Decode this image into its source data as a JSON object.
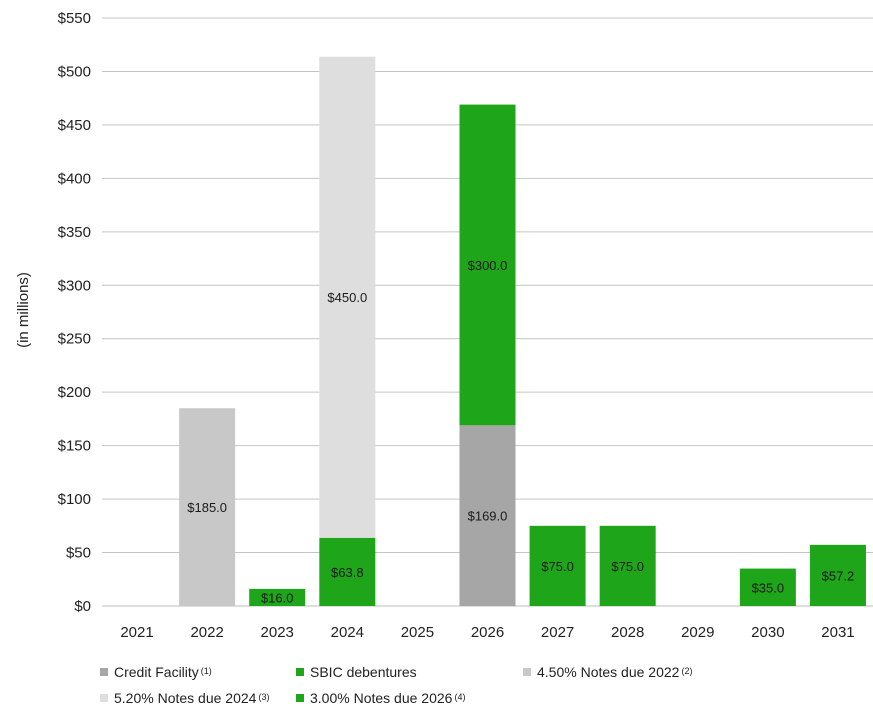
{
  "chart_data": {
    "type": "bar",
    "stacked": true,
    "ylabel": "(in millions)",
    "ylim": [
      0,
      550
    ],
    "y_ticks": [
      "$0",
      "$50",
      "$100",
      "$150",
      "$200",
      "$250",
      "$300",
      "$350",
      "$400",
      "$450",
      "$500",
      "$550"
    ],
    "categories": [
      "2021",
      "2022",
      "2023",
      "2024",
      "2025",
      "2026",
      "2027",
      "2028",
      "2029",
      "2030",
      "2031"
    ],
    "series": [
      {
        "name": "Credit Facility",
        "note": "(1)",
        "color": "#a6a6a6",
        "values": [
          0,
          0,
          0,
          0,
          0,
          169.0,
          0,
          0,
          0,
          0,
          0
        ]
      },
      {
        "name": "SBIC debentures",
        "note": "",
        "color": "#1fa51a",
        "values": [
          0,
          0,
          16.0,
          63.8,
          0,
          0,
          75.0,
          75.0,
          0,
          35.0,
          57.2
        ]
      },
      {
        "name": "4.50% Notes due 2022",
        "note": "(2)",
        "color": "#c8c8c8",
        "values": [
          0,
          185.0,
          0,
          0,
          0,
          0,
          0,
          0,
          0,
          0,
          0
        ]
      },
      {
        "name": "5.20% Notes due 2024",
        "note": "(3)",
        "color": "#dedede",
        "values": [
          0,
          0,
          0,
          450.0,
          0,
          0,
          0,
          0,
          0,
          0,
          0
        ]
      },
      {
        "name": "3.00% Notes due 2026",
        "note": "(4)",
        "color": "#1fa51a",
        "values": [
          0,
          0,
          0,
          0,
          0,
          300.0,
          0,
          0,
          0,
          0,
          0
        ]
      }
    ],
    "data_labels": [
      {
        "category": "2022",
        "series": "4.50% Notes due 2022",
        "text": "$185.0"
      },
      {
        "category": "2023",
        "series": "SBIC debentures",
        "text": "$16.0"
      },
      {
        "category": "2024",
        "series": "SBIC debentures",
        "text": "$63.8"
      },
      {
        "category": "2024",
        "series": "5.20% Notes due 2024",
        "text": "$450.0"
      },
      {
        "category": "2026",
        "series": "Credit Facility",
        "text": "$169.0"
      },
      {
        "category": "2026",
        "series": "3.00% Notes due 2026",
        "text": "$300.0"
      },
      {
        "category": "2027",
        "series": "SBIC debentures",
        "text": "$75.0"
      },
      {
        "category": "2028",
        "series": "SBIC debentures",
        "text": "$75.0"
      },
      {
        "category": "2030",
        "series": "SBIC debentures",
        "text": "$35.0"
      },
      {
        "category": "2031",
        "series": "SBIC debentures",
        "text": "$57.2"
      }
    ],
    "grid": true,
    "legend_position": "bottom-left"
  }
}
